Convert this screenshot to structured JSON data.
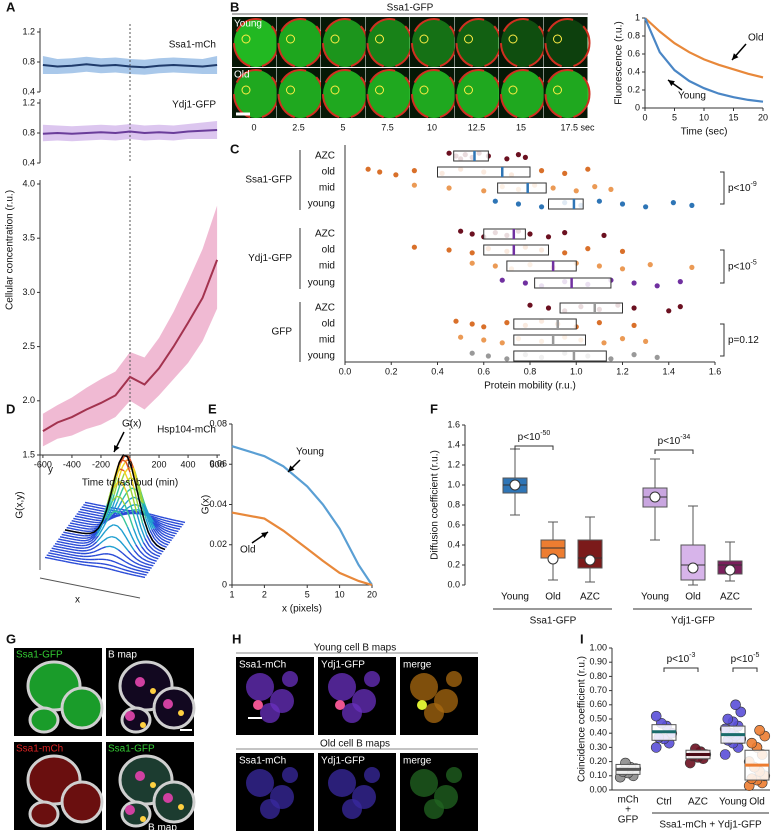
{
  "figure": {
    "panel_labels": [
      "A",
      "B",
      "C",
      "D",
      "E",
      "F",
      "G",
      "H",
      "I"
    ],
    "B": {
      "title": "Ssa1-GFP",
      "rows": [
        "Young",
        "Old"
      ],
      "time_labels": [
        "0",
        "2.5",
        "5",
        "7.5",
        "10",
        "12.5",
        "15",
        "17.5 sec"
      ]
    },
    "D": {
      "peak_label": "G(x)",
      "z_label": "G(x,y)",
      "y_label": "y",
      "x_label": "x"
    },
    "G": {
      "labels": [
        "Ssa1-GFP",
        "B map",
        "Ssa1-mCh",
        "Ssa1-GFP",
        "B map"
      ]
    },
    "H": {
      "young_title": "Young cell B maps",
      "old_title": "Old cell B maps",
      "columns": [
        "Ssa1-mCh",
        "Ydj1-GFP",
        "merge"
      ]
    }
  },
  "chart_data": [
    {
      "type": "band-line",
      "annotation": "Ssa1-mCh",
      "x": [
        -600,
        -500,
        -400,
        -300,
        -200,
        -100,
        0,
        100,
        200,
        300,
        400,
        500,
        600
      ],
      "values": [
        0.76,
        0.74,
        0.75,
        0.77,
        0.75,
        0.76,
        0.74,
        0.73,
        0.75,
        0.76,
        0.75,
        0.74,
        0.76
      ],
      "lower": [
        0.64,
        0.64,
        0.65,
        0.67,
        0.65,
        0.66,
        0.64,
        0.63,
        0.65,
        0.66,
        0.65,
        0.64,
        0.64
      ],
      "upper": [
        0.88,
        0.84,
        0.85,
        0.87,
        0.85,
        0.86,
        0.84,
        0.83,
        0.85,
        0.86,
        0.85,
        0.84,
        0.88
      ],
      "color": "#1f3b6b",
      "band_color": "#a9c8ea",
      "xlim": [
        -620,
        620
      ],
      "ylim": [
        0.4,
        1.2
      ],
      "yticks": [
        0.4,
        0.8,
        1.2
      ],
      "vline": 0
    },
    {
      "type": "band-line",
      "annotation": "Ydj1-GFP",
      "ylabel": "Cellular concentration (r.u.)",
      "x": [
        -600,
        -500,
        -400,
        -300,
        -200,
        -100,
        0,
        100,
        200,
        300,
        400,
        500,
        600
      ],
      "values": [
        0.79,
        0.8,
        0.79,
        0.8,
        0.81,
        0.8,
        0.82,
        0.8,
        0.81,
        0.8,
        0.82,
        0.83,
        0.84
      ],
      "lower": [
        0.69,
        0.7,
        0.69,
        0.7,
        0.71,
        0.7,
        0.72,
        0.7,
        0.71,
        0.7,
        0.72,
        0.72,
        0.72
      ],
      "upper": [
        0.91,
        0.9,
        0.89,
        0.9,
        0.91,
        0.9,
        0.92,
        0.9,
        0.91,
        0.9,
        0.92,
        0.94,
        0.96
      ],
      "color": "#6a3d9a",
      "band_color": "#dcc6ef",
      "xlim": [
        -620,
        620
      ],
      "ylim": [
        0.4,
        1.2
      ],
      "yticks": [
        0.4,
        0.8,
        1.2
      ],
      "vline": 0
    },
    {
      "type": "band-line",
      "annotation": "Hsp104-mCh",
      "xlabel": "Time to last bud (min)",
      "x": [
        -600,
        -500,
        -400,
        -300,
        -200,
        -100,
        0,
        100,
        200,
        300,
        400,
        500,
        600
      ],
      "values": [
        1.72,
        1.8,
        1.85,
        1.92,
        1.98,
        2.05,
        2.22,
        2.15,
        2.3,
        2.5,
        2.72,
        2.95,
        3.3
      ],
      "lower": [
        1.58,
        1.65,
        1.68,
        1.74,
        1.78,
        1.85,
        2.0,
        1.92,
        2.05,
        2.2,
        2.35,
        2.55,
        2.85
      ],
      "upper": [
        1.88,
        1.96,
        2.03,
        2.12,
        2.2,
        2.27,
        2.45,
        2.4,
        2.58,
        2.82,
        3.1,
        3.4,
        3.8
      ],
      "color": "#a3334f",
      "band_color": "#f0bad3",
      "xlim": [
        -620,
        620
      ],
      "ylim": [
        1.5,
        4.0
      ],
      "yticks": [
        1.5,
        {
          "value": 2,
          "label": "2.0"
        },
        2.5,
        {
          "value": 3,
          "label": "3.0"
        },
        3.5,
        {
          "value": 4,
          "label": "4.0"
        }
      ],
      "xticks": [
        -600,
        -400,
        -200,
        0,
        200,
        400,
        600
      ],
      "vline": 0
    },
    {
      "type": "line",
      "x": [
        0,
        2.5,
        5,
        7.5,
        10,
        12.5,
        15,
        17.5,
        20
      ],
      "series": [
        {
          "name": "Old",
          "color": "#e8883a",
          "values": [
            1,
            0.85,
            0.72,
            0.62,
            0.54,
            0.48,
            0.43,
            0.38,
            0.34
          ]
        },
        {
          "name": "Young",
          "color": "#4a86c5",
          "values": [
            1,
            0.62,
            0.42,
            0.3,
            0.22,
            0.16,
            0.12,
            0.09,
            0.07
          ]
        }
      ],
      "xlim": [
        0,
        20
      ],
      "ylim": [
        0,
        1
      ],
      "xticks": [
        0,
        5,
        10,
        15,
        20
      ],
      "yticks": [
        0,
        0.2,
        0.4,
        0.6,
        0.8,
        1
      ],
      "xlabel": "Time (sec)",
      "ylabel": "Fluorescence (r.u.)"
    },
    {
      "type": "hbox",
      "xlabel": "Protein mobility (r.u.)",
      "xlim": [
        0,
        1.6
      ],
      "xticks": [
        {
          "value": 0,
          "label": "0.0"
        },
        0.2,
        0.4,
        0.6,
        0.8,
        {
          "value": 1,
          "label": "1.0"
        },
        1.2,
        1.4,
        1.6
      ],
      "groups": [
        {
          "name": "Ssa1-GFP",
          "median_color": "#2e75b6",
          "p_text": "p<10",
          "p_exp": "-9",
          "rows": [
            {
              "name": "AZC",
              "color": "#6b1020",
              "q1": 0.47,
              "median": 0.56,
              "q3": 0.62,
              "points": [
                0.45,
                0.48,
                0.5,
                0.52,
                0.55,
                0.58,
                0.62,
                0.7,
                0.75,
                0.78
              ]
            },
            {
              "name": "old",
              "color": "#d9702a",
              "q1": 0.4,
              "median": 0.68,
              "q3": 0.8,
              "points": [
                0.1,
                0.15,
                0.22,
                0.3,
                0.42,
                0.5,
                0.6,
                0.72,
                0.85,
                0.95,
                1.05
              ]
            },
            {
              "name": "mid",
              "color": "#eb9a55",
              "q1": 0.66,
              "median": 0.79,
              "q3": 0.87,
              "points": [
                0.3,
                0.45,
                0.6,
                0.68,
                0.75,
                0.82,
                0.9,
                1.0,
                1.08,
                1.15
              ]
            },
            {
              "name": "young",
              "color": "#2e75b6",
              "q1": 0.88,
              "median": 0.99,
              "q3": 1.03,
              "points": [
                0.65,
                0.75,
                0.85,
                0.95,
                1.02,
                1.1,
                1.2,
                1.3,
                1.42,
                1.5
              ]
            }
          ]
        },
        {
          "name": "Ydj1-GFP",
          "median_color": "#7030a0",
          "p_text": "p<10",
          "p_exp": "-5",
          "rows": [
            {
              "name": "AZC",
              "color": "#6b1020",
              "q1": 0.6,
              "median": 0.73,
              "q3": 0.78,
              "points": [
                0.5,
                0.55,
                0.6,
                0.65,
                0.7,
                0.75,
                0.8,
                0.88,
                0.95,
                1.12
              ]
            },
            {
              "name": "old",
              "color": "#d9702a",
              "q1": 0.6,
              "median": 0.73,
              "q3": 0.88,
              "points": [
                0.3,
                0.45,
                0.55,
                0.62,
                0.7,
                0.78,
                0.85,
                0.95,
                1.05,
                1.2
              ]
            },
            {
              "name": "mid",
              "color": "#eb9a55",
              "q1": 0.7,
              "median": 0.9,
              "q3": 1.0,
              "points": [
                0.55,
                0.65,
                0.72,
                0.8,
                0.9,
                1.0,
                1.1,
                1.2,
                1.32,
                1.5
              ]
            },
            {
              "name": "young",
              "color": "#7030a0",
              "q1": 0.82,
              "median": 0.98,
              "q3": 1.15,
              "points": [
                0.68,
                0.78,
                0.85,
                0.95,
                1.05,
                1.15,
                1.25,
                1.35,
                1.45
              ]
            }
          ]
        },
        {
          "name": "GFP",
          "median_color": "#999999",
          "p_text": "p=0.12",
          "rows": [
            {
              "name": "AZC",
              "color": "#6b1020",
              "q1": 0.93,
              "median": 1.08,
              "q3": 1.2,
              "points": [
                0.8,
                0.88,
                0.95,
                1.02,
                1.1,
                1.18,
                1.25,
                1.4,
                1.45
              ]
            },
            {
              "name": "old",
              "color": "#d9702a",
              "q1": 0.73,
              "median": 0.92,
              "q3": 1.0,
              "points": [
                0.48,
                0.55,
                0.6,
                0.7,
                0.78,
                0.85,
                0.92,
                1.0,
                1.1,
                1.25
              ]
            },
            {
              "name": "mid",
              "color": "#eb9a55",
              "q1": 0.73,
              "median": 0.9,
              "q3": 1.04,
              "points": [
                0.5,
                0.6,
                0.68,
                0.75,
                0.85,
                0.95,
                1.02,
                1.12,
                1.2,
                1.3
              ]
            },
            {
              "name": "young",
              "color": "#999999",
              "q1": 0.73,
              "median": 0.99,
              "q3": 1.13,
              "points": [
                0.55,
                0.62,
                0.7,
                0.78,
                0.85,
                0.95,
                1.05,
                1.15,
                1.25,
                1.35
              ]
            }
          ]
        }
      ]
    },
    {
      "type": "line",
      "xscale": "log",
      "x": [
        1,
        2,
        3,
        5,
        7,
        10,
        15,
        20
      ],
      "series": [
        {
          "name": "Young",
          "color": "#5a9fd4",
          "values": [
            0.069,
            0.064,
            0.059,
            0.049,
            0.04,
            0.028,
            0.01,
            0
          ]
        },
        {
          "name": "Old",
          "color": "#e8883a",
          "values": [
            0.036,
            0.033,
            0.027,
            0.018,
            0.012,
            0.006,
            0.002,
            0
          ]
        }
      ],
      "xlim": [
        1,
        20
      ],
      "ylim": [
        0,
        0.08
      ],
      "xticks": [
        1,
        2,
        5,
        10,
        20
      ],
      "yticks": [
        0,
        0.02,
        0.04,
        0.06,
        0.08
      ],
      "xlabel": "x (pixels)",
      "ylabel": "G(x)"
    },
    {
      "type": "box",
      "ylabel": "Diffusion coefficient (r.u.)",
      "ylim": [
        0,
        1.6
      ],
      "yticks": [
        {
          "value": 0,
          "label": "0.0"
        },
        0.2,
        0.4,
        0.6,
        0.8,
        {
          "value": 1,
          "label": "1.0"
        },
        1.2,
        1.4,
        1.6
      ],
      "groups": [
        {
          "name": "Ssa1-GFP",
          "p_text": "p<10",
          "p_exp": "-50",
          "boxes": [
            {
              "name": "Young",
              "color": "#2e75b6",
              "min": 0.7,
              "q1": 0.92,
              "median": 1.0,
              "q3": 1.07,
              "max": 1.36,
              "mean": 1.0
            },
            {
              "name": "Old",
              "color": "#ed7d31",
              "min": 0.05,
              "q1": 0.27,
              "median": 0.37,
              "q3": 0.45,
              "max": 0.63,
              "mean": 0.26
            },
            {
              "name": "AZC",
              "color": "#7b1a1a",
              "min": 0.03,
              "q1": 0.17,
              "median": 0.27,
              "q3": 0.45,
              "max": 0.68,
              "mean": 0.25
            }
          ]
        },
        {
          "name": "Ydj1-GFP",
          "p_text": "p<10",
          "p_exp": "-34",
          "boxes": [
            {
              "name": "Young",
              "color": "#c9a6e0",
              "min": 0.45,
              "q1": 0.78,
              "median": 0.88,
              "q3": 0.97,
              "max": 1.26,
              "mean": 0.88
            },
            {
              "name": "Old",
              "color": "#d7b4ea",
              "min": 0.0,
              "q1": 0.05,
              "median": 0.2,
              "q3": 0.4,
              "max": 0.79,
              "mean": 0.17
            },
            {
              "name": "AZC",
              "color": "#7a1f5c",
              "min": 0.04,
              "q1": 0.11,
              "median": 0.2,
              "q3": 0.24,
              "max": 0.43,
              "mean": 0.15
            }
          ]
        }
      ]
    },
    {
      "type": "crossbar",
      "ylabel": "Coincidence coefficient (r.u.)",
      "ylim": [
        0,
        1
      ],
      "yticks": [
        {
          "value": 0,
          "label": "0.00"
        },
        {
          "value": 0.1,
          "label": "0.10"
        },
        {
          "value": 0.2,
          "label": "0.20"
        },
        {
          "value": 0.3,
          "label": "0.30"
        },
        {
          "value": 0.4,
          "label": "0.40"
        },
        {
          "value": 0.5,
          "label": "0.50"
        },
        {
          "value": 0.6,
          "label": "0.60"
        },
        {
          "value": 0.7,
          "label": "0.70"
        },
        {
          "value": 0.8,
          "label": "0.80"
        },
        {
          "value": 0.9,
          "label": "0.90"
        },
        {
          "value": 1,
          "label": "1.00"
        }
      ],
      "group_label": "Ssa1-mCh + Ydj1-GFP",
      "comparisons": [
        {
          "p_text": "p<10",
          "p_exp": "-3"
        },
        {
          "p_text": "p<10",
          "p_exp": "-5"
        }
      ],
      "items": [
        {
          "name": [
            "mCh",
            "+",
            "GFP"
          ],
          "color": "#8c8c8c",
          "line_color": "#555555",
          "low": 0.11,
          "center": 0.145,
          "high": 0.18,
          "points": [
            0.09,
            0.1,
            0.12,
            0.13,
            0.15,
            0.16,
            0.19
          ]
        },
        {
          "name": "Ctrl",
          "color": "#5a4fd8",
          "line_color": "#1a6b6b",
          "low": 0.35,
          "center": 0.41,
          "high": 0.46,
          "points": [
            0.3,
            0.33,
            0.36,
            0.37,
            0.4,
            0.45,
            0.47,
            0.52
          ]
        },
        {
          "name": "AZC",
          "color": "#6b1020",
          "line_color": "#4a0a15",
          "low": 0.22,
          "center": 0.25,
          "high": 0.28,
          "points": [
            0.19,
            0.22,
            0.23,
            0.24,
            0.25,
            0.27,
            0.29
          ]
        },
        {
          "name": "Young",
          "color": "#5a4fd8",
          "line_color": "#1a6b6b",
          "low": 0.33,
          "center": 0.39,
          "high": 0.45,
          "points": [
            0.25,
            0.3,
            0.33,
            0.35,
            0.36,
            0.38,
            0.4,
            0.43,
            0.45,
            0.48,
            0.5,
            0.55,
            0.6
          ]
        },
        {
          "name": "Old",
          "color": "#ed7d31",
          "line_color": "#ed7d31",
          "low": 0.07,
          "center": 0.175,
          "high": 0.28,
          "points": [
            0.03,
            0.05,
            0.07,
            0.08,
            0.1,
            0.13,
            0.16,
            0.2,
            0.25,
            0.3,
            0.33,
            0.38,
            0.42
          ]
        }
      ]
    }
  ]
}
